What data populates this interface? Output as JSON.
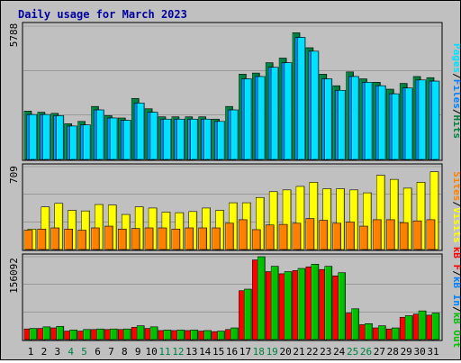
{
  "title": "Daily usage for March 2023",
  "colors": {
    "background": "#c0c0c0",
    "hits": "#008040",
    "files": "#0080ff",
    "pages": "#00e0ff",
    "visits": "#ffff00",
    "sites": "#ff8000",
    "kb_f": "#ff0000",
    "kb_in": "#0080ff",
    "kb_out": "#00c000",
    "weekend_label": "#008040"
  },
  "legend": {
    "top": {
      "pages": "Pages",
      "sep1": "/",
      "files": "Files",
      "sep2": "/",
      "hits": "Hits"
    },
    "mid": {
      "sites": "Sites",
      "sep1": "/",
      "visits": "Visits"
    },
    "bottom": {
      "kb_f": "kB F",
      "sep1": "/",
      "kb_in": "kB In",
      "sep2": "/",
      "kb_out": "kB Out"
    }
  },
  "chart_data": [
    {
      "type": "bar",
      "title": "Daily usage for March 2023",
      "categories": [
        "1",
        "2",
        "3",
        "4",
        "5",
        "6",
        "7",
        "8",
        "9",
        "10",
        "11",
        "12",
        "13",
        "14",
        "15",
        "16",
        "17",
        "18",
        "19",
        "20",
        "21",
        "22",
        "23",
        "24",
        "25",
        "26",
        "27",
        "28",
        "29",
        "30",
        "31"
      ],
      "weekend_days": [
        "4",
        "5",
        "11",
        "12",
        "18",
        "19",
        "25",
        "26"
      ],
      "ylabel": "5788",
      "ylim": [
        0,
        5788
      ],
      "series": [
        {
          "name": "Hits",
          "values": [
            2100,
            2050,
            2000,
            1550,
            1650,
            2300,
            1900,
            1800,
            2650,
            2200,
            1850,
            1850,
            1850,
            1850,
            1750,
            2300,
            3700,
            3750,
            4200,
            4400,
            5500,
            4850,
            3700,
            3200,
            3800,
            3500,
            3350,
            3050,
            3300,
            3600,
            3550
          ]
        },
        {
          "name": "Files",
          "values": [
            1950,
            1950,
            1900,
            1450,
            1500,
            2150,
            1800,
            1700,
            2450,
            2050,
            1750,
            1750,
            1750,
            1750,
            1650,
            2150,
            3500,
            3600,
            4000,
            4200,
            5300,
            4700,
            3500,
            3000,
            3600,
            3350,
            3200,
            2850,
            3100,
            3450,
            3400
          ]
        },
        {
          "name": "Pages",
          "values": [
            1950,
            1950,
            1900,
            1450,
            1500,
            2150,
            1800,
            1700,
            2450,
            2050,
            1750,
            1750,
            1750,
            1750,
            1650,
            2150,
            3500,
            3600,
            4000,
            4200,
            5300,
            4700,
            3500,
            3000,
            3600,
            3350,
            3200,
            2850,
            3100,
            3450,
            3400
          ]
        }
      ]
    },
    {
      "type": "bar",
      "categories": [
        "1",
        "2",
        "3",
        "4",
        "5",
        "6",
        "7",
        "8",
        "9",
        "10",
        "11",
        "12",
        "13",
        "14",
        "15",
        "16",
        "17",
        "18",
        "19",
        "20",
        "21",
        "22",
        "23",
        "24",
        "25",
        "26",
        "27",
        "28",
        "29",
        "30",
        "31"
      ],
      "ylabel": "709",
      "ylim": [
        0,
        709
      ],
      "series": [
        {
          "name": "Visits",
          "values": [
            175,
            365,
            395,
            335,
            330,
            385,
            380,
            300,
            365,
            355,
            320,
            315,
            325,
            355,
            335,
            400,
            400,
            445,
            495,
            510,
            540,
            575,
            520,
            520,
            510,
            485,
            635,
            600,
            525,
            575,
            665
          ]
        },
        {
          "name": "Sites",
          "values": [
            165,
            175,
            185,
            175,
            165,
            185,
            200,
            175,
            180,
            185,
            185,
            175,
            185,
            185,
            185,
            225,
            255,
            170,
            210,
            215,
            225,
            265,
            250,
            225,
            235,
            200,
            255,
            255,
            230,
            245,
            255
          ]
        }
      ]
    },
    {
      "type": "bar",
      "categories": [
        "1",
        "2",
        "3",
        "4",
        "5",
        "6",
        "7",
        "8",
        "9",
        "10",
        "11",
        "12",
        "13",
        "14",
        "15",
        "16",
        "17",
        "18",
        "19",
        "20",
        "21",
        "22",
        "23",
        "24",
        "25",
        "26",
        "27",
        "28",
        "29",
        "30",
        "31"
      ],
      "ylabel": "156092",
      "ylim": [
        0,
        156092
      ],
      "series": [
        {
          "name": "kB F",
          "values": [
            20000,
            21000,
            22000,
            16000,
            16000,
            19000,
            19000,
            19000,
            23000,
            21000,
            17000,
            17000,
            17000,
            16000,
            15000,
            19000,
            92000,
            150000,
            128000,
            124000,
            130000,
            137000,
            132000,
            120000,
            50000,
            28000,
            22000,
            20000,
            42000,
            48000,
            46000
          ]
        },
        {
          "name": "kB In",
          "values": [
            0,
            0,
            0,
            0,
            0,
            0,
            0,
            0,
            0,
            0,
            0,
            0,
            0,
            0,
            0,
            0,
            0,
            0,
            0,
            0,
            0,
            0,
            0,
            0,
            0,
            0,
            0,
            0,
            0,
            0,
            0
          ]
        },
        {
          "name": "kB Out",
          "values": [
            21000,
            24000,
            25000,
            18000,
            19000,
            20000,
            20000,
            20000,
            26000,
            24000,
            18000,
            18000,
            18000,
            17000,
            16000,
            22000,
            95000,
            156092,
            138000,
            128000,
            134000,
            142000,
            138000,
            126000,
            58000,
            30000,
            26000,
            22000,
            45000,
            54000,
            50000
          ]
        }
      ]
    }
  ]
}
